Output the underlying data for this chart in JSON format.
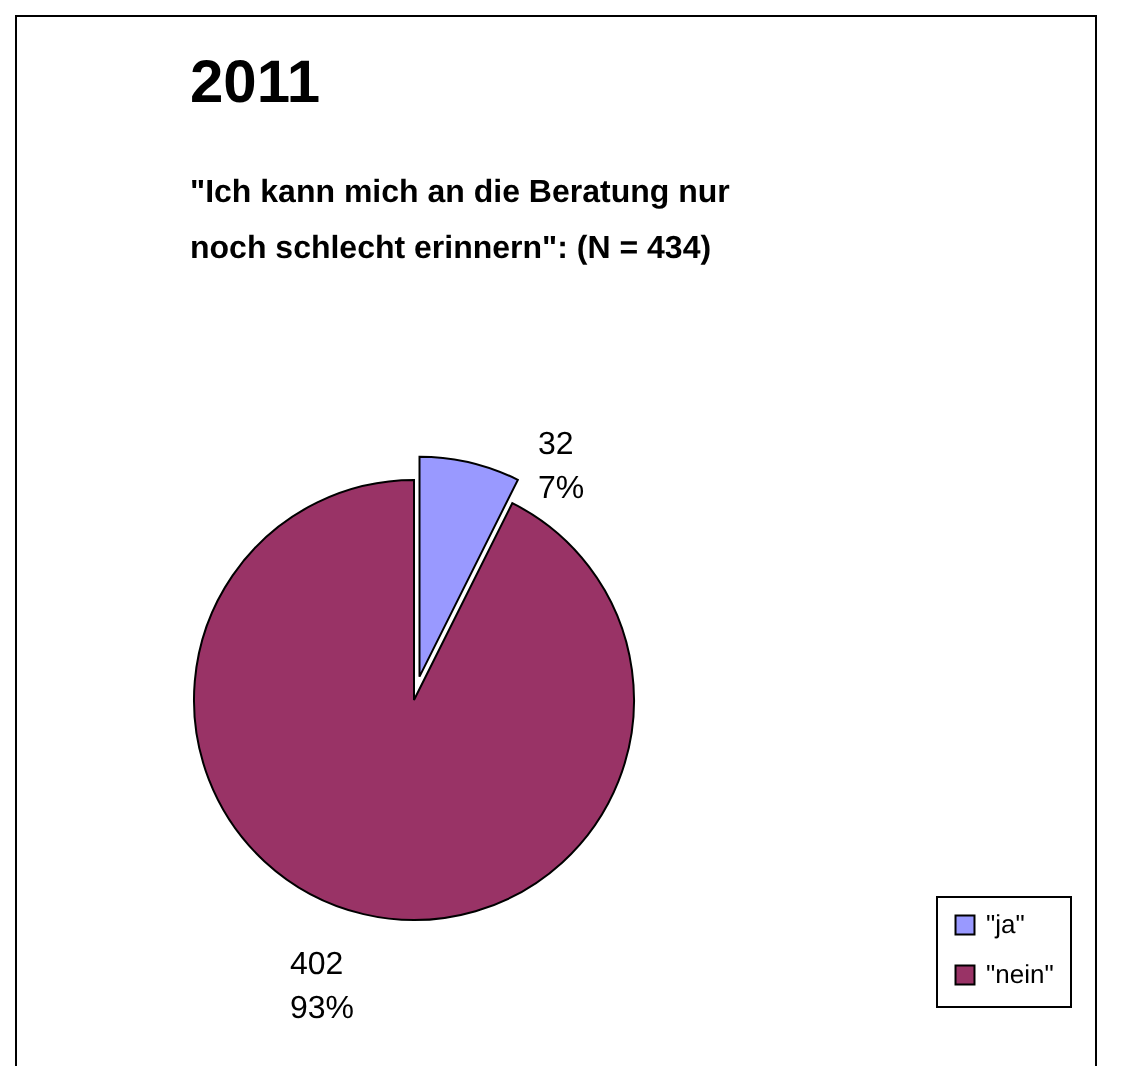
{
  "chart_data": {
    "type": "pie",
    "title": "2011",
    "subtitle": "\"Ich kann mich an die Beratung nur noch schlecht erinnern\": (N = 434)",
    "categories": [
      "\"ja\"",
      "\"nein\""
    ],
    "values": [
      32,
      402
    ],
    "colors": [
      "#9999ff",
      "#993366"
    ],
    "value_labels": [
      "32\n7%",
      "402\n93%"
    ],
    "legend": "bottom right"
  }
}
